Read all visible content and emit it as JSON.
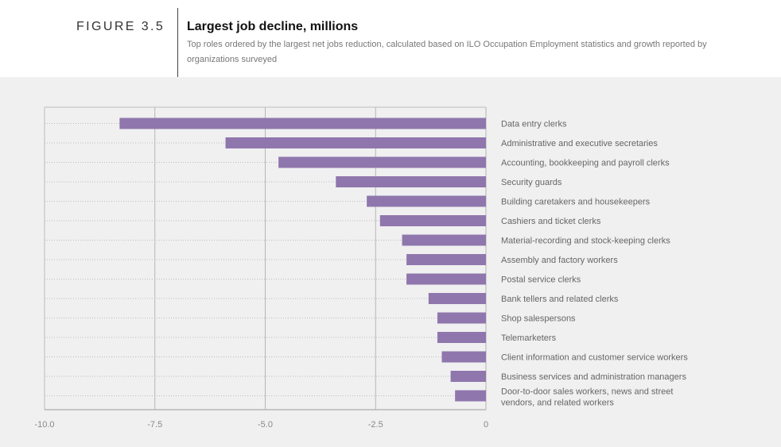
{
  "header": {
    "figure_label": "FIGURE 3.5",
    "title": "Largest job decline, millions",
    "subtitle": "Top roles ordered by the largest net jobs reduction, calculated based on ILO Occupation Employment statistics and growth reported by organizations surveyed"
  },
  "chart_data": {
    "type": "bar",
    "orientation": "horizontal",
    "title": "Largest job decline, millions",
    "categories": [
      "Data entry clerks",
      "Administrative and executive secretaries",
      "Accounting, bookkeeping and payroll clerks",
      "Security guards",
      "Building caretakers and housekeepers",
      "Cashiers and ticket clerks",
      "Material-recording and stock-keeping clerks",
      "Assembly and factory workers",
      "Postal service clerks",
      "Bank tellers and related clerks",
      "Shop salespersons",
      "Telemarketers",
      "Client information and customer service workers",
      "Business services and administration managers",
      "Door-to-door sales workers, news and street vendors, and related workers"
    ],
    "values": [
      -8.3,
      -5.9,
      -4.7,
      -3.4,
      -2.7,
      -2.4,
      -1.9,
      -1.8,
      -1.8,
      -1.3,
      -1.1,
      -1.1,
      -1.0,
      -0.8,
      -0.7
    ],
    "xlim": [
      -10.0,
      0
    ],
    "xticks": [
      -10.0,
      -7.5,
      -5.0,
      -2.5,
      0
    ],
    "xtick_labels": [
      "-10.0",
      "-7.5",
      "-5.0",
      "-2.5",
      "0"
    ],
    "xlabel": "",
    "ylabel": "",
    "grid": true,
    "bar_color": "#8f77ad",
    "grid_color": "#b5b5b5",
    "background_color": "#f0f0f1"
  }
}
